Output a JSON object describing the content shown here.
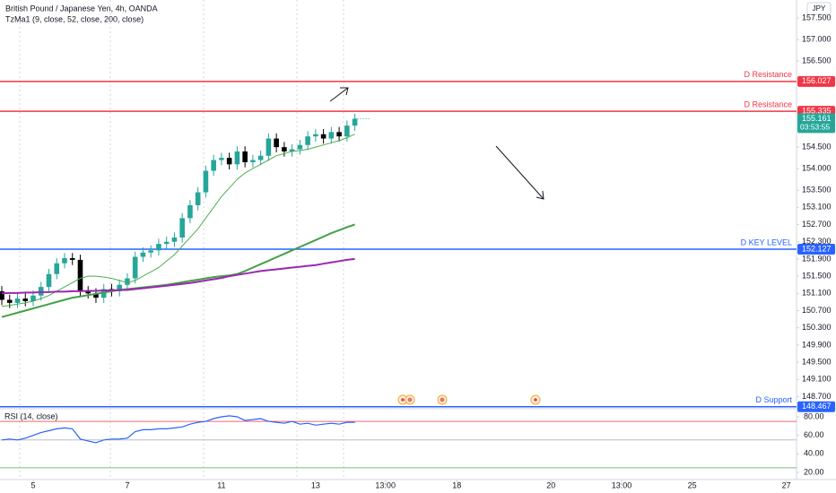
{
  "chart_data": {
    "type": "candlestick",
    "title": "British Pound / Japanese Yen, 4h, OANDA",
    "indicator": "TzMa1 (9, close, 52, close, 200, close)",
    "currency": "JPY",
    "up_color": "#26a69a",
    "down_color": "#000000",
    "open": [
      151.15,
      150.95,
      150.88,
      150.98,
      150.92,
      151.05,
      151.25,
      151.55,
      151.8,
      151.92,
      151.88,
      151.15,
      151.1,
      151.0,
      151.2,
      151.15,
      151.3,
      151.45,
      151.95,
      152.05,
      152.1,
      152.25,
      152.3,
      152.4,
      152.85,
      153.15,
      153.45,
      153.95,
      154.2,
      154.25,
      154.1,
      154.4,
      154.15,
      154.2,
      154.3,
      154.7,
      154.5,
      154.4,
      154.45,
      154.55,
      154.75,
      154.8,
      154.7,
      154.85,
      154.75,
      155.0
    ],
    "high": [
      151.27,
      151.07,
      151.1,
      151.1,
      151.17,
      151.37,
      151.67,
      151.92,
      152.04,
      152.04,
      152.0,
      151.27,
      151.22,
      151.32,
      151.32,
      151.42,
      151.57,
      152.07,
      152.17,
      152.22,
      152.37,
      152.42,
      152.52,
      152.97,
      153.27,
      153.57,
      154.07,
      154.32,
      154.37,
      154.37,
      154.52,
      154.52,
      154.32,
      154.42,
      154.82,
      154.82,
      154.62,
      154.57,
      154.67,
      154.87,
      154.92,
      154.92,
      154.97,
      154.97,
      155.12,
      155.28
    ],
    "low": [
      150.83,
      150.76,
      150.76,
      150.8,
      150.8,
      150.93,
      151.13,
      151.43,
      151.68,
      151.76,
      151.03,
      150.98,
      150.88,
      150.88,
      151.03,
      151.03,
      151.18,
      151.33,
      151.83,
      151.93,
      151.98,
      152.13,
      152.18,
      152.28,
      152.73,
      153.03,
      153.33,
      153.83,
      154.08,
      153.98,
      153.98,
      154.03,
      154.03,
      154.08,
      154.18,
      154.38,
      154.28,
      154.28,
      154.33,
      154.43,
      154.63,
      154.58,
      154.58,
      154.63,
      154.63,
      154.88
    ],
    "close": [
      150.95,
      150.88,
      150.98,
      150.92,
      151.05,
      151.25,
      151.55,
      151.8,
      151.92,
      151.88,
      151.15,
      151.1,
      151.0,
      151.2,
      151.15,
      151.3,
      151.45,
      151.95,
      152.05,
      152.1,
      152.25,
      152.3,
      152.4,
      152.85,
      153.15,
      153.45,
      153.95,
      154.2,
      154.25,
      154.1,
      154.4,
      154.15,
      154.2,
      154.3,
      154.7,
      154.5,
      154.4,
      154.45,
      154.55,
      154.75,
      154.8,
      154.7,
      154.85,
      154.75,
      155.0,
      155.16
    ],
    "moving_averages": [
      {
        "color": "#4caf50",
        "width": 1,
        "values": [
          150.8,
          150.82,
          150.85,
          150.88,
          150.92,
          150.98,
          151.05,
          151.15,
          151.25,
          151.35,
          151.45,
          151.5,
          151.5,
          151.48,
          151.45,
          151.4,
          151.35,
          151.4,
          151.5,
          151.6,
          151.7,
          151.85,
          152.0,
          152.2,
          152.4,
          152.6,
          152.85,
          153.1,
          153.35,
          153.55,
          153.75,
          153.9,
          154.0,
          154.1,
          154.2,
          154.3,
          154.35,
          154.4,
          154.42,
          154.45,
          154.5,
          154.55,
          154.6,
          154.65,
          154.72,
          154.8
        ]
      },
      {
        "color": "#43a047",
        "width": 2,
        "values": [
          150.55,
          150.6,
          150.65,
          150.7,
          150.75,
          150.8,
          150.85,
          150.9,
          150.95,
          151.0,
          151.03,
          151.06,
          151.09,
          151.12,
          151.15,
          151.18,
          151.2,
          151.22,
          151.24,
          151.26,
          151.28,
          151.3,
          151.33,
          151.36,
          151.39,
          151.42,
          151.45,
          151.48,
          151.5,
          151.52,
          151.55,
          151.62,
          151.7,
          151.78,
          151.86,
          151.94,
          152.02,
          152.1,
          152.18,
          152.26,
          152.34,
          152.42,
          152.5,
          152.57,
          152.64,
          152.7
        ]
      },
      {
        "color": "#9c27b0",
        "width": 2,
        "values": [
          151.1,
          151.11,
          151.11,
          151.12,
          151.12,
          151.13,
          151.13,
          151.14,
          151.14,
          151.15,
          151.15,
          151.16,
          151.16,
          151.17,
          151.17,
          151.18,
          151.18,
          151.2,
          151.22,
          151.24,
          151.26,
          151.28,
          151.3,
          151.32,
          151.34,
          151.37,
          151.4,
          151.43,
          151.46,
          151.5,
          151.53,
          151.56,
          151.59,
          151.62,
          151.64,
          151.66,
          151.68,
          151.7,
          151.72,
          151.74,
          151.76,
          151.79,
          151.82,
          151.85,
          151.88,
          151.9
        ]
      }
    ],
    "xlim": [
      -0.23,
      101.3
    ],
    "xticks": [
      {
        "value": 4,
        "label": "5"
      },
      {
        "value": 16,
        "label": "7"
      },
      {
        "value": 28,
        "label": "11"
      },
      {
        "value": 40,
        "label": "13"
      },
      {
        "value": 48.9,
        "label": "13:00"
      },
      {
        "value": 58,
        "label": "18"
      },
      {
        "value": 70,
        "label": "20"
      },
      {
        "value": 79,
        "label": "13:00"
      },
      {
        "value": 88,
        "label": "25"
      },
      {
        "value": 100,
        "label": "27"
      }
    ],
    "ylim": [
      148.44,
      157.92
    ],
    "yticks": [
      {
        "value": 157.5,
        "label": "157.500"
      },
      {
        "value": 157.0,
        "label": "157.000"
      },
      {
        "value": 156.5,
        "label": "156.500"
      },
      {
        "value": 154.5,
        "label": "154.500"
      },
      {
        "value": 154.0,
        "label": "154.000"
      },
      {
        "value": 153.5,
        "label": "153.500"
      },
      {
        "value": 153.1,
        "label": "153.100"
      },
      {
        "value": 152.7,
        "label": "152.700"
      },
      {
        "value": 152.3,
        "label": "152.300"
      },
      {
        "value": 151.9,
        "label": "151.900"
      },
      {
        "value": 151.5,
        "label": "151.500"
      },
      {
        "value": 151.1,
        "label": "151.100"
      },
      {
        "value": 150.7,
        "label": "150.700"
      },
      {
        "value": 150.3,
        "label": "150.300"
      },
      {
        "value": 149.9,
        "label": "149.900"
      },
      {
        "value": 149.5,
        "label": "149.500"
      },
      {
        "value": 149.1,
        "label": "149.100"
      },
      {
        "value": 148.7,
        "label": "148.700"
      }
    ],
    "levels": [
      {
        "label": "D Resistance",
        "value": 156.027,
        "color": "#f23645"
      },
      {
        "label": "D Resistance",
        "value": 155.335,
        "color": "#f23645"
      },
      {
        "label": "D KEY LEVEL",
        "value": 152.127,
        "color": "#2962ff"
      },
      {
        "label": "D Support",
        "value": 148.467,
        "color": "#2962ff"
      }
    ],
    "last_price": 155.161,
    "countdown": "03:53:55",
    "rsi": {
      "title": "RSI (14, close)",
      "color": "#2962ff",
      "values": [
        55,
        56,
        55,
        57,
        60,
        63,
        65,
        67,
        68,
        67,
        56,
        54,
        52,
        55,
        56,
        56,
        57,
        64,
        66,
        66,
        67,
        67,
        68,
        69,
        72,
        74,
        75,
        78,
        80,
        81,
        80,
        76,
        77,
        78,
        75,
        74,
        73,
        75,
        72,
        73,
        71,
        72,
        73,
        72,
        74,
        74
      ],
      "ylim": [
        12.3,
        87.7
      ],
      "yticks": [
        {
          "value": 80,
          "label": "80.00"
        },
        {
          "value": 60,
          "label": "60.00"
        },
        {
          "value": 40,
          "label": "40.00"
        },
        {
          "value": 20,
          "label": "20.00"
        }
      ],
      "levels": [
        {
          "value": 75,
          "color": "#f23645"
        },
        {
          "value": 55,
          "color": "#b2b5be"
        },
        {
          "value": 25,
          "color": "#4caf50"
        }
      ]
    }
  }
}
